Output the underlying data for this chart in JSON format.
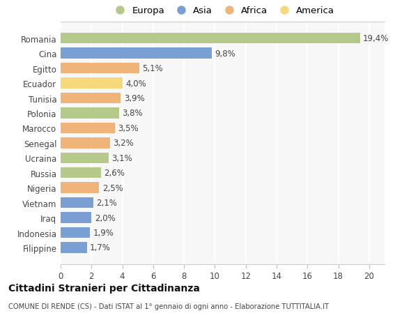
{
  "categories": [
    "Romania",
    "Cina",
    "Egitto",
    "Ecuador",
    "Tunisia",
    "Polonia",
    "Marocco",
    "Senegal",
    "Ucraina",
    "Russia",
    "Nigeria",
    "Vietnam",
    "Iraq",
    "Indonesia",
    "Filippine"
  ],
  "values": [
    19.4,
    9.8,
    5.1,
    4.0,
    3.9,
    3.8,
    3.5,
    3.2,
    3.1,
    2.6,
    2.5,
    2.1,
    2.0,
    1.9,
    1.7
  ],
  "labels": [
    "19,4%",
    "9,8%",
    "5,1%",
    "4,0%",
    "3,9%",
    "3,8%",
    "3,5%",
    "3,2%",
    "3,1%",
    "2,6%",
    "2,5%",
    "2,1%",
    "2,0%",
    "1,9%",
    "1,7%"
  ],
  "colors": [
    "#b5c98a",
    "#7a9fd4",
    "#f0b47a",
    "#f5d97a",
    "#f0b47a",
    "#b5c98a",
    "#f0b47a",
    "#f0b47a",
    "#b5c98a",
    "#b5c98a",
    "#f0b47a",
    "#7a9fd4",
    "#7a9fd4",
    "#7a9fd4",
    "#7a9fd4"
  ],
  "legend": [
    {
      "label": "Europa",
      "color": "#b5c98a"
    },
    {
      "label": "Asia",
      "color": "#7a9fd4"
    },
    {
      "label": "Africa",
      "color": "#f0b47a"
    },
    {
      "label": "America",
      "color": "#f5d97a"
    }
  ],
  "xlim": [
    0,
    21
  ],
  "xticks": [
    0,
    2,
    4,
    6,
    8,
    10,
    12,
    14,
    16,
    18,
    20
  ],
  "title": "Cittadini Stranieri per Cittadinanza",
  "subtitle": "COMUNE DI RENDE (CS) - Dati ISTAT al 1° gennaio di ogni anno - Elaborazione TUTTITALIA.IT",
  "background_color": "#ffffff",
  "plot_bg_color": "#f7f7f7",
  "grid_color": "#ffffff",
  "bar_height": 0.72,
  "label_fontsize": 8.5,
  "ytick_fontsize": 8.5,
  "xtick_fontsize": 8.5
}
